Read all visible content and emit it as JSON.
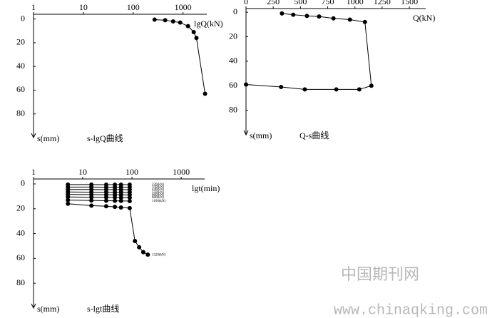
{
  "chart_data": [
    {
      "type": "line",
      "title": "s-lgQ曲线",
      "x_label": "lgQ(kN)",
      "y_label": "s(mm)",
      "log_x": true,
      "y_reversed": true,
      "xlim": [
        1,
        3000
      ],
      "xticks": [
        1,
        10,
        100,
        1000
      ],
      "ylim": [
        -4,
        100
      ],
      "yticks": [
        0,
        20,
        40,
        60,
        80
      ],
      "series": [
        {
          "color": "#000000",
          "x": [
            269,
            438,
            633,
            877,
            1260,
            1640,
            1860,
            2770
          ],
          "values": [
            0.5,
            1,
            2,
            3,
            6,
            11,
            16,
            63
          ]
        }
      ]
    },
    {
      "type": "line",
      "title": "Q-s曲线",
      "x_label": "Q(kN)",
      "y_label": "s(mm)",
      "log_x": false,
      "y_reversed": true,
      "xlim": [
        0,
        1650
      ],
      "xticks": [
        0,
        250,
        500,
        750,
        1000,
        1250,
        1500
      ],
      "ylim": [
        -3,
        100
      ],
      "yticks": [
        0,
        20,
        40,
        60,
        80
      ],
      "series": [
        {
          "color": "#000000",
          "x": [
            330,
            434,
            559,
            671,
            803,
            954,
            1092,
            1151,
            1040,
            829,
            540,
            322,
            0
          ],
          "values": [
            1,
            2,
            3,
            3.5,
            5,
            6,
            8,
            60,
            63,
            63,
            63,
            61,
            59
          ]
        }
      ]
    },
    {
      "type": "line",
      "title": "s-lgt曲线",
      "x_label": "lgt(min)",
      "y_label": "s(mm)",
      "log_x": true,
      "y_reversed": true,
      "xlim": [
        1,
        3000
      ],
      "xticks": [
        1,
        10,
        100,
        1000
      ],
      "ylim": [
        -4,
        100
      ],
      "yticks": [
        0,
        20,
        40,
        60,
        80
      ],
      "series": [
        {
          "name": "220(kN)",
          "color": "#000000",
          "x": [
            5,
            15,
            30,
            45,
            60,
            90
          ],
          "values": [
            0.5,
            0.5,
            0.6,
            0.6,
            0.6,
            0.6
          ]
        },
        {
          "name": "330(kN)",
          "color": "#000000",
          "x": [
            5,
            15,
            30,
            45,
            60,
            90
          ],
          "values": [
            2.5,
            2.5,
            2.6,
            2.6,
            2.6,
            2.6
          ]
        },
        {
          "name": "440(kN)",
          "color": "#000000",
          "x": [
            5,
            15,
            30,
            45,
            60,
            90
          ],
          "values": [
            4.5,
            4.5,
            4.6,
            4.6,
            4.6,
            4.6
          ]
        },
        {
          "name": "550(kN)",
          "color": "#000000",
          "x": [
            5,
            15,
            30,
            45,
            60,
            90
          ],
          "values": [
            6.5,
            6.6,
            6.6,
            6.7,
            6.7,
            6.7
          ]
        },
        {
          "name": "660(kN)",
          "color": "#000000",
          "x": [
            5,
            15,
            30,
            45,
            60,
            90
          ],
          "values": [
            8.5,
            8.6,
            8.7,
            8.7,
            8.8,
            8.8
          ]
        },
        {
          "name": "880(kN)",
          "color": "#000000",
          "x": [
            5,
            15,
            30,
            45,
            60,
            90
          ],
          "values": [
            10.5,
            10.7,
            10.8,
            10.9,
            11,
            11
          ]
        },
        {
          "name": "1100(kN)",
          "color": "#000000",
          "x": [
            5,
            15,
            30,
            45,
            60,
            90
          ],
          "values": [
            13,
            13.3,
            13.5,
            13.6,
            13.7,
            13.8
          ]
        },
        {
          "name": "1320(kN)",
          "color": "#000000",
          "x": [
            5,
            15,
            30,
            45,
            60,
            90,
            115,
            140,
            170,
            210
          ],
          "values": [
            16,
            17.5,
            18,
            18.5,
            19,
            19.5,
            46,
            51,
            55,
            57
          ]
        }
      ]
    }
  ],
  "watermark": {
    "name": "中国期刊网",
    "url": "www.chinaqking.com"
  }
}
